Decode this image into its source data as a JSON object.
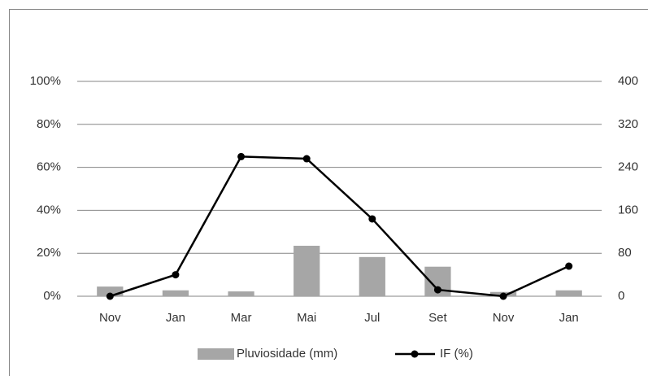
{
  "chart_data": {
    "type": "combo",
    "categories": [
      "Nov",
      "Jan",
      "Mar",
      "Mai",
      "Jul",
      "Set",
      "Nov",
      "Jan"
    ],
    "series": [
      {
        "name": "Pluviosidade (mm)",
        "type": "bar",
        "axis": "y2",
        "color": "#a6a6a6",
        "values": [
          18,
          11,
          9,
          94,
          73,
          55,
          8,
          11
        ]
      },
      {
        "name": "IF (%)",
        "type": "line",
        "color": "#000000",
        "values": [
          0,
          10,
          65,
          64,
          36,
          3,
          0,
          14
        ]
      }
    ],
    "ylim": [
      0,
      100
    ],
    "yticks": [
      {
        "value": 0,
        "label": "0%"
      },
      {
        "value": 20,
        "label": "20%"
      },
      {
        "value": 40,
        "label": "40%"
      },
      {
        "value": 60,
        "label": "60%"
      },
      {
        "value": 80,
        "label": "80%"
      },
      {
        "value": 100,
        "label": "100%"
      }
    ],
    "y2lim": [
      0,
      400
    ],
    "y2ticks": [
      0,
      80,
      160,
      240,
      320,
      400
    ],
    "grid": true,
    "legend": "bottom"
  }
}
